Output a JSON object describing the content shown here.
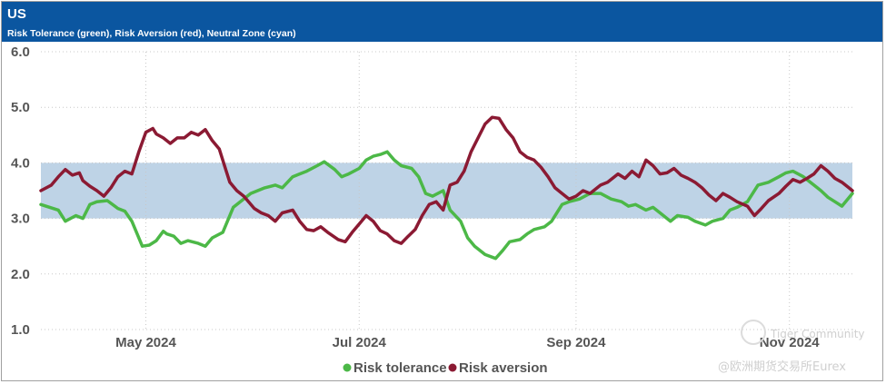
{
  "header": {
    "title": "US",
    "subtitle": "Risk Tolerance (green), Risk Aversion (red), Neutral Zone (cyan)"
  },
  "watermark": {
    "line1": "Tiger Community",
    "line2": "@欧洲期货交易所Eurex"
  },
  "colors": {
    "header_bg": "#0b56a0",
    "tolerance": "#4cb847",
    "aversion": "#8b1a33",
    "neutral": "#bed3e6"
  },
  "chart_data": {
    "type": "line",
    "title": "US",
    "subtitle": "Risk Tolerance (green), Risk Aversion (red), Neutral Zone (cyan)",
    "ylim": [
      1.0,
      6.0
    ],
    "yticks": [
      "1.0",
      "2.0",
      "3.0",
      "4.0",
      "5.0",
      "6.0"
    ],
    "xlim": [
      0,
      232
    ],
    "xticks": [
      {
        "label": "May 2024",
        "x": 30
      },
      {
        "label": "Jul 2024",
        "x": 91
      },
      {
        "label": "Sep 2024",
        "x": 153
      },
      {
        "label": "Nov 2024",
        "x": 214
      }
    ],
    "neutral_zone": [
      3.0,
      4.0
    ],
    "grid": true,
    "legend_position": "bottom-center",
    "series": [
      {
        "name": "Risk tolerance",
        "color": "#4cb847",
        "x": [
          0,
          5,
          7,
          10,
          12,
          14,
          16,
          19,
          22,
          24,
          26,
          29,
          31,
          33,
          35,
          36,
          38,
          40,
          42,
          45,
          47,
          49,
          52,
          55,
          57,
          60,
          64,
          67,
          69,
          72,
          74,
          76,
          79,
          81,
          84,
          86,
          88,
          91,
          93,
          95,
          97,
          99,
          101,
          103,
          106,
          108,
          110,
          112,
          115,
          117,
          120,
          122,
          124,
          127,
          130,
          132,
          134,
          137,
          139,
          141,
          144,
          146,
          149,
          151,
          154,
          157,
          160,
          163,
          166,
          168,
          170,
          173,
          175,
          178,
          180,
          182,
          185,
          187,
          190,
          192,
          195,
          197,
          199,
          202,
          205,
          208,
          211,
          213,
          215,
          218,
          221,
          223,
          225,
          227,
          229,
          232
        ],
        "y": [
          3.25,
          3.15,
          2.95,
          3.05,
          3.0,
          3.25,
          3.3,
          3.32,
          3.18,
          3.13,
          2.95,
          2.5,
          2.52,
          2.6,
          2.77,
          2.72,
          2.68,
          2.55,
          2.6,
          2.55,
          2.5,
          2.65,
          2.75,
          3.2,
          3.3,
          3.45,
          3.55,
          3.6,
          3.55,
          3.75,
          3.8,
          3.85,
          3.95,
          4.02,
          3.88,
          3.75,
          3.8,
          3.9,
          4.05,
          4.12,
          4.15,
          4.2,
          4.05,
          3.95,
          3.9,
          3.75,
          3.45,
          3.4,
          3.5,
          3.15,
          2.95,
          2.65,
          2.5,
          2.35,
          2.28,
          2.42,
          2.58,
          2.62,
          2.72,
          2.8,
          2.85,
          2.95,
          3.25,
          3.3,
          3.35,
          3.45,
          3.45,
          3.35,
          3.3,
          3.22,
          3.25,
          3.15,
          3.2,
          3.05,
          2.95,
          3.05,
          3.02,
          2.95,
          2.88,
          2.95,
          3.0,
          3.15,
          3.2,
          3.3,
          3.6,
          3.65,
          3.75,
          3.82,
          3.85,
          3.75,
          3.6,
          3.5,
          3.38,
          3.3,
          3.22,
          3.45
        ]
      },
      {
        "name": "Risk aversion",
        "color": "#8b1a33",
        "x": [
          0,
          3,
          5,
          7,
          9,
          11,
          12,
          14,
          16,
          18,
          20,
          22,
          24,
          26,
          28,
          30,
          32,
          33,
          35,
          37,
          39,
          41,
          43,
          45,
          47,
          49,
          51,
          53,
          54,
          56,
          58,
          61,
          63,
          65,
          67,
          69,
          72,
          74,
          76,
          78,
          80,
          82,
          85,
          87,
          89,
          91,
          93,
          95,
          97,
          99,
          101,
          103,
          105,
          107,
          109,
          111,
          113,
          115,
          117,
          119,
          121,
          123,
          125,
          127,
          129,
          131,
          133,
          135,
          137,
          139,
          141,
          143,
          145,
          147,
          149,
          151,
          153,
          155,
          157,
          160,
          162,
          165,
          167,
          169,
          171,
          173,
          175,
          177,
          179,
          181,
          183,
          185,
          187,
          189,
          191,
          193,
          195,
          197,
          199,
          202,
          204,
          206,
          208,
          211,
          213,
          215,
          217,
          219,
          221,
          223,
          225,
          227,
          229,
          231,
          232
        ],
        "y": [
          3.5,
          3.6,
          3.75,
          3.88,
          3.78,
          3.82,
          3.68,
          3.58,
          3.5,
          3.4,
          3.55,
          3.75,
          3.85,
          3.8,
          4.2,
          4.55,
          4.62,
          4.52,
          4.45,
          4.35,
          4.45,
          4.45,
          4.55,
          4.5,
          4.6,
          4.4,
          4.25,
          3.85,
          3.65,
          3.5,
          3.4,
          3.18,
          3.1,
          3.05,
          2.95,
          3.1,
          3.15,
          2.95,
          2.8,
          2.78,
          2.85,
          2.75,
          2.62,
          2.58,
          2.75,
          2.9,
          3.05,
          2.95,
          2.78,
          2.72,
          2.6,
          2.55,
          2.68,
          2.8,
          3.05,
          3.25,
          3.3,
          3.15,
          3.6,
          3.65,
          3.85,
          4.2,
          4.45,
          4.7,
          4.82,
          4.8,
          4.6,
          4.45,
          4.2,
          4.1,
          4.05,
          3.92,
          3.75,
          3.55,
          3.45,
          3.35,
          3.4,
          3.5,
          3.45,
          3.6,
          3.65,
          3.8,
          3.72,
          3.85,
          3.75,
          4.05,
          3.95,
          3.8,
          3.82,
          3.9,
          3.78,
          3.72,
          3.65,
          3.55,
          3.42,
          3.32,
          3.45,
          3.38,
          3.3,
          3.22,
          3.05,
          3.18,
          3.32,
          3.45,
          3.58,
          3.7,
          3.65,
          3.72,
          3.8,
          3.95,
          3.85,
          3.72,
          3.65,
          3.55,
          3.5
        ]
      }
    ]
  }
}
